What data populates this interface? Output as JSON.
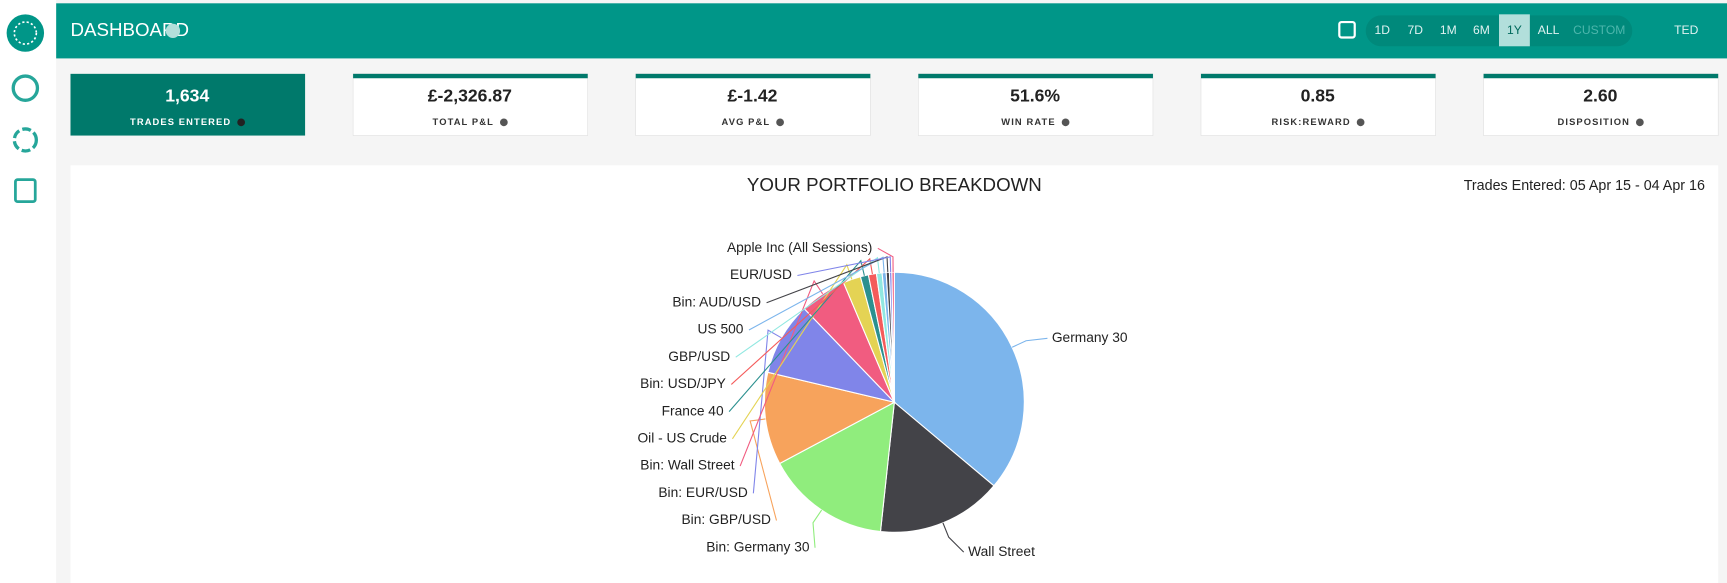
{
  "header": {
    "title": "DASHBOARD",
    "ranges": [
      "1D",
      "7D",
      "1M",
      "6M",
      "1Y",
      "ALL",
      "CUSTOM"
    ],
    "active_range": "1Y",
    "user": "TED"
  },
  "stats": [
    {
      "value": "1,634",
      "label": "TRADES ENTERED"
    },
    {
      "value": "£-2,326.87",
      "label": "TOTAL P&L"
    },
    {
      "value": "£-1.42",
      "label": "AVG P&L"
    },
    {
      "value": "51.6%",
      "label": "WIN RATE"
    },
    {
      "value": "0.85",
      "label": "RISK:REWARD"
    },
    {
      "value": "2.60",
      "label": "DISPOSITION"
    }
  ],
  "chart_data": {
    "type": "pie",
    "title": "YOUR PORTFOLIO BREAKDOWN",
    "subtitle": "Trades Entered: 05 Apr 15 - 04 Apr 16",
    "categories": [
      "Germany 30",
      "Wall Street",
      "Bin: Germany 30",
      "Bin: GBP/USD",
      "Bin: EUR/USD",
      "Bin: Wall Street",
      "Oil - US Crude",
      "France 40",
      "Bin: USD/JPY",
      "GBP/USD",
      "US 500",
      "Bin: AUD/USD",
      "EUR/USD",
      "Apple Inc (All Sessions)"
    ],
    "values": [
      36.1,
      15.6,
      15.5,
      11.5,
      9.1,
      5.8,
      2.2,
      1.0,
      1.0,
      0.7,
      0.5,
      0.4,
      0.3,
      0.3
    ],
    "colors": [
      "#7cb5ec",
      "#434348",
      "#90ed7d",
      "#f7a35c",
      "#8085e9",
      "#f15c80",
      "#e4d354",
      "#2b908f",
      "#f45b5b",
      "#91e8e1",
      "#7cb5ec",
      "#434348",
      "#8085e9",
      "#f15c80"
    ]
  }
}
